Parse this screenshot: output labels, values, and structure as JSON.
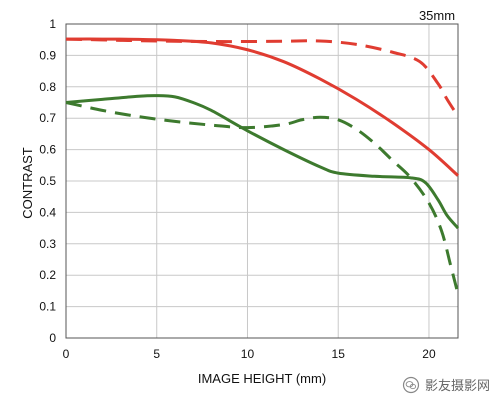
{
  "chart_data": {
    "type": "line",
    "title": "",
    "annotation": "35mm",
    "xlabel": "IMAGE HEIGHT (mm)",
    "ylabel": "CONTRAST",
    "xlim": [
      0,
      21.6
    ],
    "ylim": [
      0,
      1
    ],
    "x_ticks": [
      0,
      5,
      10,
      15,
      20
    ],
    "y_ticks": [
      0,
      0.1,
      0.2,
      0.3,
      0.4,
      0.5,
      0.6,
      0.7,
      0.8,
      0.9,
      1
    ],
    "y_tick_labels": [
      "0",
      "0.1",
      "0.2",
      "0.3",
      "0.4",
      "0.5",
      "0.6",
      "0.7",
      "0.8",
      "0.9",
      "1"
    ],
    "grid": true,
    "series": [
      {
        "color": "#e03c31",
        "dash": "solid",
        "points": [
          [
            0,
            0.952
          ],
          [
            2,
            0.952
          ],
          [
            4,
            0.951
          ],
          [
            6,
            0.948
          ],
          [
            8,
            0.94
          ],
          [
            10,
            0.918
          ],
          [
            12,
            0.88
          ],
          [
            14,
            0.825
          ],
          [
            16,
            0.76
          ],
          [
            18,
            0.685
          ],
          [
            20,
            0.6
          ],
          [
            21.6,
            0.517
          ]
        ]
      },
      {
        "color": "#e03c31",
        "dash": "dashed",
        "points": [
          [
            0,
            0.952
          ],
          [
            3,
            0.948
          ],
          [
            6,
            0.945
          ],
          [
            9,
            0.944
          ],
          [
            12,
            0.945
          ],
          [
            14,
            0.946
          ],
          [
            16,
            0.935
          ],
          [
            18,
            0.91
          ],
          [
            19.5,
            0.88
          ],
          [
            20.5,
            0.81
          ],
          [
            21,
            0.76
          ],
          [
            21.6,
            0.706
          ]
        ]
      },
      {
        "color": "#3d7a2e",
        "dash": "solid",
        "points": [
          [
            0,
            0.75
          ],
          [
            2,
            0.76
          ],
          [
            4,
            0.77
          ],
          [
            5,
            0.772
          ],
          [
            6,
            0.768
          ],
          [
            7,
            0.75
          ],
          [
            8,
            0.725
          ],
          [
            10,
            0.66
          ],
          [
            12,
            0.6
          ],
          [
            14,
            0.545
          ],
          [
            15,
            0.525
          ],
          [
            17,
            0.515
          ],
          [
            19,
            0.51
          ],
          [
            19.8,
            0.495
          ],
          [
            20.5,
            0.44
          ],
          [
            21,
            0.39
          ],
          [
            21.6,
            0.35
          ]
        ]
      },
      {
        "color": "#3d7a2e",
        "dash": "dashed",
        "points": [
          [
            0,
            0.75
          ],
          [
            2,
            0.725
          ],
          [
            4,
            0.705
          ],
          [
            6,
            0.69
          ],
          [
            8,
            0.678
          ],
          [
            10,
            0.67
          ],
          [
            12,
            0.68
          ],
          [
            13,
            0.695
          ],
          [
            14,
            0.703
          ],
          [
            15,
            0.695
          ],
          [
            16,
            0.665
          ],
          [
            17,
            0.62
          ],
          [
            18,
            0.565
          ],
          [
            19,
            0.51
          ],
          [
            20,
            0.43
          ],
          [
            20.7,
            0.34
          ],
          [
            21.2,
            0.23
          ],
          [
            21.6,
            0.14
          ]
        ]
      }
    ]
  },
  "watermark": {
    "icon": "wechat-icon",
    "text": "影友摄影网"
  }
}
